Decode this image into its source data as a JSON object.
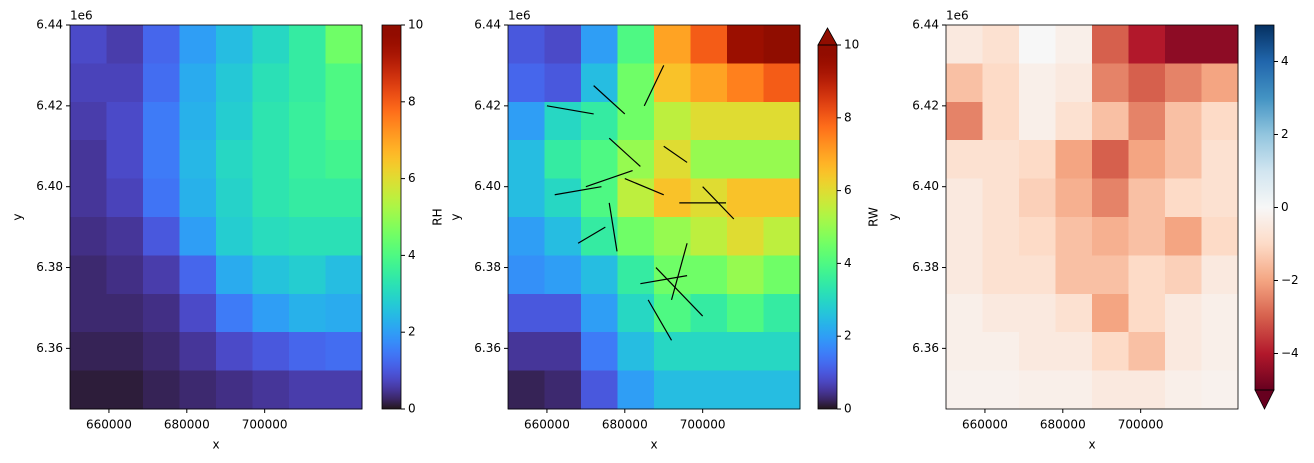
{
  "chart_data": [
    {
      "type": "heatmap",
      "xlabel": "x",
      "ylabel": "y",
      "offset_text": "1e6",
      "xlim": [
        650000,
        725000
      ],
      "ylim": [
        6345000,
        6440000
      ],
      "xticks": [
        660000,
        680000,
        700000
      ],
      "yticks": [
        {
          "value": 6360000,
          "label": "6.36"
        },
        {
          "value": 6380000,
          "label": "6.38"
        },
        {
          "value": 6400000,
          "label": "6.40"
        },
        {
          "value": 6420000,
          "label": "6.42"
        },
        {
          "value": 6440000,
          "label": "6.44"
        }
      ],
      "colormap": "turbo",
      "clim": [
        0,
        10
      ],
      "cbar_ticks": [
        0,
        2,
        4,
        6,
        8,
        10
      ],
      "cbar_label": "RH",
      "z": [
        [
          0.8,
          0.6,
          1.2,
          2,
          2.5,
          3,
          3.5,
          4.5
        ],
        [
          0.7,
          0.7,
          1.3,
          2.2,
          2.7,
          3.2,
          3.5,
          4
        ],
        [
          0.6,
          0.8,
          1.5,
          2.3,
          2.8,
          3.3,
          3.6,
          4
        ],
        [
          0.5,
          0.8,
          1.5,
          2.4,
          3,
          3.3,
          3.6,
          3.8
        ],
        [
          0.5,
          0.7,
          1.4,
          2.3,
          2.9,
          3.3,
          3.5,
          3.5
        ],
        [
          0.4,
          0.5,
          1,
          2,
          2.8,
          3.1,
          3.2,
          3.2
        ],
        [
          0.3,
          0.4,
          0.6,
          1.2,
          2.2,
          2.6,
          2.8,
          2.5
        ],
        [
          0.3,
          0.3,
          0.4,
          0.8,
          1.5,
          2,
          2.3,
          2.2
        ],
        [
          0.2,
          0.2,
          0.3,
          0.5,
          0.8,
          1,
          1.2,
          1.3
        ],
        [
          0.1,
          0.1,
          0.2,
          0.3,
          0.4,
          0.5,
          0.6,
          0.6
        ]
      ]
    },
    {
      "type": "heatmap",
      "xlabel": "x",
      "ylabel": "y",
      "offset_text": "1e6",
      "xlim": [
        650000,
        725000
      ],
      "ylim": [
        6345000,
        6440000
      ],
      "xticks": [
        660000,
        680000,
        700000
      ],
      "yticks": [
        {
          "value": 6360000,
          "label": "6.36"
        },
        {
          "value": 6380000,
          "label": "6.38"
        },
        {
          "value": 6400000,
          "label": "6.40"
        },
        {
          "value": 6420000,
          "label": "6.42"
        },
        {
          "value": 6440000,
          "label": "6.44"
        }
      ],
      "colormap": "turbo",
      "clim": [
        0,
        10
      ],
      "cbar_ticks": [
        0,
        2,
        4,
        6,
        8,
        10
      ],
      "cbar_label": "RW",
      "cbar_extend": "max",
      "z": [
        [
          1,
          0.8,
          2,
          4,
          7,
          8,
          9.5,
          10.5
        ],
        [
          1.2,
          1,
          2.5,
          4.5,
          6.5,
          7,
          7.5,
          8
        ],
        [
          2,
          3,
          3.5,
          4.5,
          5.5,
          6,
          6,
          6
        ],
        [
          2.5,
          3.5,
          4,
          5,
          6,
          5,
          5,
          5
        ],
        [
          2.5,
          3,
          4,
          5.5,
          6.5,
          6,
          6.5,
          6.5
        ],
        [
          2,
          2.5,
          3.5,
          4.5,
          5,
          5.5,
          6,
          5.5
        ],
        [
          1.8,
          2,
          2.5,
          3.5,
          4.5,
          4.5,
          5,
          4.5
        ],
        [
          1,
          1,
          2,
          3,
          4,
          3.5,
          4,
          3.5
        ],
        [
          0.5,
          0.5,
          1.5,
          2.5,
          3,
          3,
          3,
          3
        ],
        [
          0.2,
          0.3,
          1,
          2,
          2.5,
          2.5,
          2.5,
          2.5
        ]
      ],
      "segment_color": "#000000",
      "segments": [
        {
          "x": [
            672000,
            680000
          ],
          "y": [
            6425000,
            6418000
          ]
        },
        {
          "x": [
            660000,
            672000
          ],
          "y": [
            6420000,
            6418000
          ]
        },
        {
          "x": [
            676000,
            684000
          ],
          "y": [
            6412000,
            6405000
          ]
        },
        {
          "x": [
            680000,
            690000
          ],
          "y": [
            6402000,
            6398000
          ]
        },
        {
          "x": [
            670000,
            682000
          ],
          "y": [
            6400000,
            6404000
          ]
        },
        {
          "x": [
            685000,
            690000
          ],
          "y": [
            6420000,
            6430000
          ]
        },
        {
          "x": [
            700000,
            708000
          ],
          "y": [
            6400000,
            6392000
          ]
        },
        {
          "x": [
            694000,
            706000
          ],
          "y": [
            6396000,
            6396000
          ]
        },
        {
          "x": [
            688000,
            700000
          ],
          "y": [
            6380000,
            6368000
          ]
        },
        {
          "x": [
            684000,
            696000
          ],
          "y": [
            6376000,
            6378000
          ]
        },
        {
          "x": [
            675000,
            668000
          ],
          "y": [
            6390000,
            6386000
          ]
        },
        {
          "x": [
            686000,
            692000
          ],
          "y": [
            6372000,
            6362000
          ]
        },
        {
          "x": [
            696000,
            692000
          ],
          "y": [
            6386000,
            6372000
          ]
        },
        {
          "x": [
            690000,
            696000
          ],
          "y": [
            6410000,
            6406000
          ]
        },
        {
          "x": [
            662000,
            674000
          ],
          "y": [
            6398000,
            6400000
          ]
        },
        {
          "x": [
            676000,
            678000
          ],
          "y": [
            6396000,
            6384000
          ]
        }
      ]
    },
    {
      "type": "heatmap",
      "xlabel": "x",
      "ylabel": "y",
      "offset_text": "1e6",
      "xlim": [
        650000,
        725000
      ],
      "ylim": [
        6345000,
        6440000
      ],
      "xticks": [
        660000,
        680000,
        700000
      ],
      "yticks": [
        {
          "value": 6360000,
          "label": "6.36"
        },
        {
          "value": 6380000,
          "label": "6.38"
        },
        {
          "value": 6400000,
          "label": "6.40"
        },
        {
          "value": 6420000,
          "label": "6.42"
        },
        {
          "value": 6440000,
          "label": "6.44"
        }
      ],
      "colormap": "RdBu",
      "clim": [
        -5,
        5
      ],
      "cbar_ticks": [
        {
          "value": -4,
          "label": "−4"
        },
        {
          "value": -2,
          "label": "−2"
        },
        0,
        2,
        4
      ],
      "cbar_extend": "min",
      "z": [
        [
          -0.5,
          -0.8,
          0,
          -0.3,
          -3,
          -4,
          -4.5,
          -4.5
        ],
        [
          -1.5,
          -1,
          -0.3,
          -0.5,
          -2.5,
          -3,
          -2.5,
          -2
        ],
        [
          -2.5,
          -1,
          -0.3,
          -0.8,
          -1.5,
          -2.5,
          -1.5,
          -1
        ],
        [
          -0.8,
          -0.8,
          -1,
          -2,
          -3,
          -2,
          -1.5,
          -0.8
        ],
        [
          -0.5,
          -0.8,
          -1.2,
          -1.8,
          -2.5,
          -1.5,
          -1,
          -0.8
        ],
        [
          -0.5,
          -0.8,
          -1,
          -1.5,
          -1.8,
          -1.5,
          -2,
          -1
        ],
        [
          -0.5,
          -0.8,
          -0.8,
          -1.5,
          -1.5,
          -1,
          -1.2,
          -0.5
        ],
        [
          -0.3,
          -0.5,
          -0.5,
          -0.8,
          -2,
          -1,
          -0.5,
          -0.3
        ],
        [
          -0.3,
          -0.3,
          -0.5,
          -0.5,
          -1,
          -1.5,
          -0.5,
          -0.3
        ],
        [
          -0.2,
          -0.2,
          -0.3,
          -0.3,
          -0.5,
          -0.5,
          -0.3,
          -0.2
        ]
      ]
    }
  ]
}
